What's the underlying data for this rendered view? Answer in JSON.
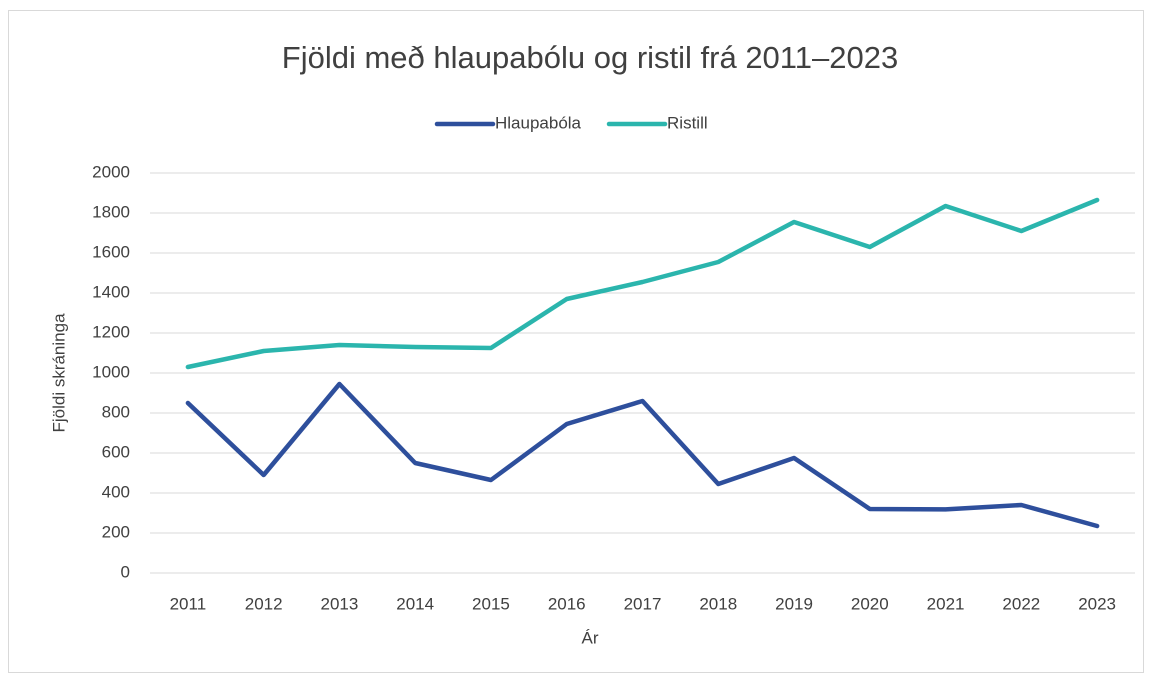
{
  "chart_data": {
    "type": "line",
    "title": "Fjöldi með hlaupabólu og ristil frá 2011–2023",
    "x_label": "Ár",
    "y_label": "Fjöldi skráninga",
    "categories": [
      "2011",
      "2012",
      "2013",
      "2014",
      "2015",
      "2016",
      "2017",
      "2018",
      "2019",
      "2020",
      "2021",
      "2022",
      "2023"
    ],
    "series": [
      {
        "name": "Hlaupabóla",
        "color": "#2e4f9c",
        "values": [
          850,
          490,
          945,
          550,
          465,
          745,
          860,
          445,
          575,
          320,
          318,
          340,
          235
        ]
      },
      {
        "name": "Ristill",
        "color": "#2bb5ad",
        "values": [
          1030,
          1110,
          1140,
          1130,
          1125,
          1370,
          1455,
          1555,
          1755,
          1630,
          1835,
          1710,
          1865
        ]
      }
    ],
    "ylim": [
      0,
      2000
    ],
    "yticks": [
      0,
      200,
      400,
      600,
      800,
      1000,
      1200,
      1400,
      1600,
      1800,
      2000
    ],
    "grid": true,
    "legend": "top"
  }
}
